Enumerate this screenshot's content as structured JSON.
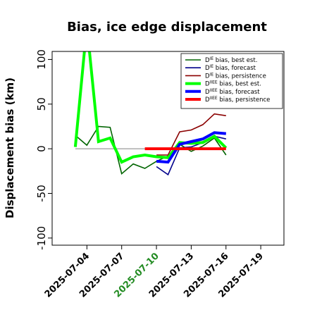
{
  "chart_data": {
    "type": "line",
    "title": "Bias, ice edge displacement",
    "ylabel": "Displacement bias (km)",
    "xlabel": "",
    "ylim": [
      -108,
      109
    ],
    "xlim": [
      "2025-07-01",
      "2025-07-21"
    ],
    "yticks": [
      -100,
      -50,
      0,
      50,
      100
    ],
    "xticks": [
      {
        "date": "2025-07-04",
        "label": "2025-07-04",
        "color": "#000000"
      },
      {
        "date": "2025-07-07",
        "label": "2025-07-07",
        "color": "#000000"
      },
      {
        "date": "2025-07-10",
        "label": "2025-07-10",
        "color": "#228B22"
      },
      {
        "date": "2025-07-13",
        "label": "2025-07-13",
        "color": "#000000"
      },
      {
        "date": "2025-07-16",
        "label": "2025-07-16",
        "color": "#000000"
      },
      {
        "date": "2025-07-19",
        "label": "2025-07-19",
        "color": "#000000"
      }
    ],
    "grid": false,
    "legend": "top-right",
    "zero_line": {
      "y": 0,
      "from": "2025-07-03",
      "to": "2025-07-16",
      "color": "#808080"
    },
    "series": [
      {
        "id": "die_best",
        "name": "bias, best est.",
        "sym": "D",
        "sup": "IE",
        "color": "#006400",
        "width": 1.6,
        "points": [
          [
            "2025-07-03",
            15
          ],
          [
            "2025-07-04",
            4
          ],
          [
            "2025-07-05",
            25
          ],
          [
            "2025-07-06",
            24
          ],
          [
            "2025-07-07",
            -28
          ],
          [
            "2025-07-08",
            -17
          ],
          [
            "2025-07-09",
            -22
          ],
          [
            "2025-07-10",
            -14
          ],
          [
            "2025-07-11",
            -8
          ],
          [
            "2025-07-12",
            5
          ],
          [
            "2025-07-13",
            -3
          ],
          [
            "2025-07-14",
            3
          ],
          [
            "2025-07-15",
            12
          ],
          [
            "2025-07-16",
            -7
          ]
        ]
      },
      {
        "id": "die_fc",
        "name": "bias, forecast",
        "sym": "D",
        "sup": "IE",
        "color": "#00008B",
        "width": 1.6,
        "points": [
          [
            "2025-07-10",
            -20
          ],
          [
            "2025-07-11",
            -29
          ],
          [
            "2025-07-12",
            1
          ],
          [
            "2025-07-13",
            2
          ],
          [
            "2025-07-14",
            7
          ],
          [
            "2025-07-15",
            14
          ],
          [
            "2025-07-16",
            11
          ]
        ]
      },
      {
        "id": "die_pers",
        "name": "bias, persistence",
        "sym": "D",
        "sup": "IE",
        "color": "#8B0000",
        "width": 1.6,
        "points": [
          [
            "2025-07-10",
            -7
          ],
          [
            "2025-07-11",
            -7
          ],
          [
            "2025-07-12",
            19
          ],
          [
            "2025-07-13",
            21
          ],
          [
            "2025-07-14",
            27
          ],
          [
            "2025-07-15",
            39
          ],
          [
            "2025-07-16",
            37
          ]
        ]
      },
      {
        "id": "diiee_best",
        "name": "bias, best est.",
        "sym": "D",
        "sup": "IIEE",
        "color": "#00FF00",
        "width": 4,
        "points": [
          [
            "2025-07-03",
            2
          ],
          [
            "2025-07-04",
            138
          ],
          [
            "2025-07-05",
            8
          ],
          [
            "2025-07-06",
            12
          ],
          [
            "2025-07-07",
            -15
          ],
          [
            "2025-07-08",
            -9
          ],
          [
            "2025-07-09",
            -7
          ],
          [
            "2025-07-10",
            -9
          ],
          [
            "2025-07-11",
            -10
          ],
          [
            "2025-07-12",
            7
          ],
          [
            "2025-07-13",
            6
          ],
          [
            "2025-07-14",
            7
          ],
          [
            "2025-07-15",
            14
          ],
          [
            "2025-07-16",
            1
          ]
        ]
      },
      {
        "id": "diiee_fc",
        "name": "bias, forecast",
        "sym": "D",
        "sup": "IIEE",
        "color": "#0000FF",
        "width": 4,
        "points": [
          [
            "2025-07-10",
            -14
          ],
          [
            "2025-07-11",
            -15
          ],
          [
            "2025-07-12",
            5
          ],
          [
            "2025-07-13",
            8
          ],
          [
            "2025-07-14",
            11
          ],
          [
            "2025-07-15",
            18
          ],
          [
            "2025-07-16",
            17
          ]
        ]
      },
      {
        "id": "diiee_pers",
        "name": "bias, persistence",
        "sym": "D",
        "sup": "IIEE",
        "color": "#FF0000",
        "width": 4,
        "points": [
          [
            "2025-07-09",
            0
          ],
          [
            "2025-07-10",
            0
          ],
          [
            "2025-07-11",
            0
          ],
          [
            "2025-07-12",
            0
          ],
          [
            "2025-07-13",
            0
          ],
          [
            "2025-07-14",
            0
          ],
          [
            "2025-07-15",
            0
          ],
          [
            "2025-07-16",
            0
          ]
        ]
      }
    ]
  }
}
